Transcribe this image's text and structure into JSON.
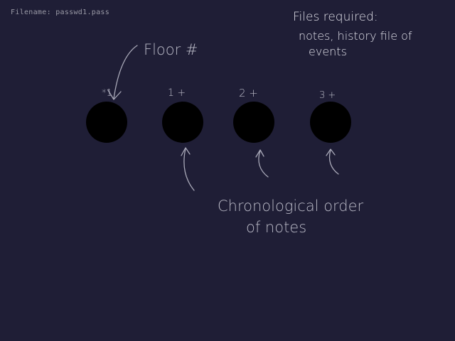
{
  "filename_label": "Filename: passwd1.pass",
  "notes": {
    "line1": "Files required:",
    "line2": "notes, history file of",
    "line3": "events"
  },
  "floor_label": "Floor #",
  "floors": [
    {
      "label": "*1"
    },
    {
      "label": "1 +"
    },
    {
      "label": "2 +"
    },
    {
      "label": "3 +"
    }
  ],
  "chronology": {
    "line1": "Chronological order",
    "line2": "of notes"
  },
  "colors": {
    "background": "#1f1e36",
    "node_fill": "#000000",
    "ink": "#b9b9c6"
  }
}
